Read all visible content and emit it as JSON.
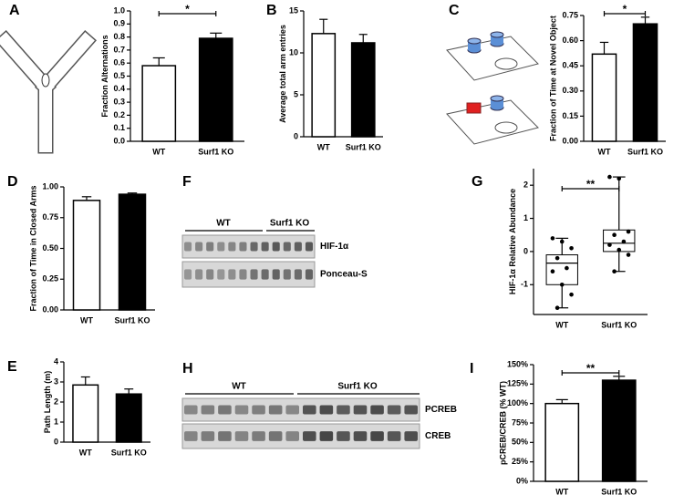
{
  "chart_data": [
    {
      "panel": "A",
      "type": "bar",
      "ylabel": "Fraction Alternations",
      "categories": [
        "WT",
        "Surf1 KO"
      ],
      "values": [
        0.58,
        0.79
      ],
      "errors": [
        0.06,
        0.04
      ],
      "colors": [
        "#ffffff",
        "#000000"
      ],
      "ylim": [
        0,
        1
      ],
      "yticks": [
        {
          "value": 0,
          "label": "0.0"
        },
        0.1,
        0.2,
        0.3,
        0.4,
        0.5,
        0.6,
        0.7,
        0.8,
        0.9,
        {
          "value": 1,
          "label": "1.0"
        }
      ],
      "annotation": "*"
    },
    {
      "panel": "B",
      "type": "bar",
      "ylabel": "Average total arm entries",
      "categories": [
        "WT",
        "Surf1 KO"
      ],
      "values": [
        12.3,
        11.2
      ],
      "errors": [
        1.7,
        1.0
      ],
      "colors": [
        "#ffffff",
        "#000000"
      ],
      "ylim": [
        0,
        15
      ],
      "yticks": [
        0,
        5,
        10,
        15
      ]
    },
    {
      "panel": "C",
      "type": "bar",
      "ylabel": "Fraction of Time at Novel Object",
      "categories": [
        "WT",
        "Surf1 KO"
      ],
      "values": [
        0.52,
        0.7
      ],
      "errors": [
        0.07,
        0.04
      ],
      "colors": [
        "#ffffff",
        "#000000"
      ],
      "ylim": [
        0,
        0.75
      ],
      "yticks": [
        {
          "value": 0,
          "label": "0.00"
        },
        {
          "value": 0.15,
          "label": "0.15"
        },
        {
          "value": 0.3,
          "label": "0.30"
        },
        {
          "value": 0.45,
          "label": "0.45"
        },
        {
          "value": 0.6,
          "label": "0.60"
        },
        {
          "value": 0.75,
          "label": "0.75"
        }
      ],
      "annotation": "*"
    },
    {
      "panel": "D",
      "type": "bar",
      "ylabel": "Fraction of Time in Closed Arms",
      "categories": [
        "WT",
        "Surf1 KO"
      ],
      "values": [
        0.89,
        0.94
      ],
      "errors": [
        0.03,
        0.01
      ],
      "colors": [
        "#ffffff",
        "#000000"
      ],
      "ylim": [
        0,
        1
      ],
      "yticks": [
        {
          "value": 0,
          "label": "0.00"
        },
        {
          "value": 0.25,
          "label": "0.25"
        },
        {
          "value": 0.5,
          "label": "0.50"
        },
        {
          "value": 0.75,
          "label": "0.75"
        },
        {
          "value": 1,
          "label": "1.00"
        }
      ]
    },
    {
      "panel": "E",
      "type": "bar",
      "ylabel": "Path Length (m)",
      "categories": [
        "WT",
        "Surf1 KO"
      ],
      "values": [
        2.85,
        2.4
      ],
      "errors": [
        0.4,
        0.25
      ],
      "colors": [
        "#ffffff",
        "#000000"
      ],
      "ylim": [
        0,
        4
      ],
      "yticks": [
        0,
        1,
        2,
        3,
        4
      ]
    },
    {
      "panel": "G",
      "type": "box",
      "ylabel": "HIF-1α Relative Abundance",
      "categories": [
        "WT",
        "Surf1 KO"
      ],
      "boxes": [
        {
          "min": -1.7,
          "q1": -1.0,
          "median": -0.35,
          "q3": -0.1,
          "max": 0.4,
          "points": [
            0.4,
            0.3,
            0.1,
            -0.2,
            -0.5,
            -0.6,
            -1.0,
            -1.3,
            -1.7
          ]
        },
        {
          "min": -0.6,
          "q1": 0.0,
          "median": 0.25,
          "q3": 0.65,
          "max": 2.25,
          "points": [
            2.25,
            2.2,
            0.6,
            0.5,
            0.3,
            0.2,
            0.05,
            -0.1,
            -0.6
          ]
        }
      ],
      "ylim": [
        -1.9,
        2.5
      ],
      "yticks": [
        -1,
        0,
        1,
        2
      ],
      "annotation": "**"
    },
    {
      "panel": "I",
      "type": "bar",
      "ylabel": "pCREB/CREB (% WT)",
      "categories": [
        "WT",
        "Surf1 KO"
      ],
      "values": [
        100,
        130
      ],
      "errors": [
        5,
        5
      ],
      "colors": [
        "#ffffff",
        "#000000"
      ],
      "ylim": [
        0,
        150
      ],
      "yticks": [
        {
          "value": 0,
          "label": "0%"
        },
        {
          "value": 25,
          "label": "25%"
        },
        {
          "value": 50,
          "label": "50%"
        },
        {
          "value": 75,
          "label": "75%"
        },
        {
          "value": 100,
          "label": "100%"
        },
        {
          "value": 125,
          "label": "125%"
        },
        {
          "value": 150,
          "label": "150%"
        }
      ],
      "annotation": "**"
    }
  ],
  "blots": [
    {
      "panel": "F",
      "groups": [
        "WT",
        "Surf1 KO"
      ],
      "rows": [
        "HIF-1α",
        "Ponceau-S"
      ]
    },
    {
      "panel": "H",
      "groups": [
        "WT",
        "Surf1 KO"
      ],
      "rows": [
        "PCREB",
        "CREB"
      ]
    }
  ]
}
